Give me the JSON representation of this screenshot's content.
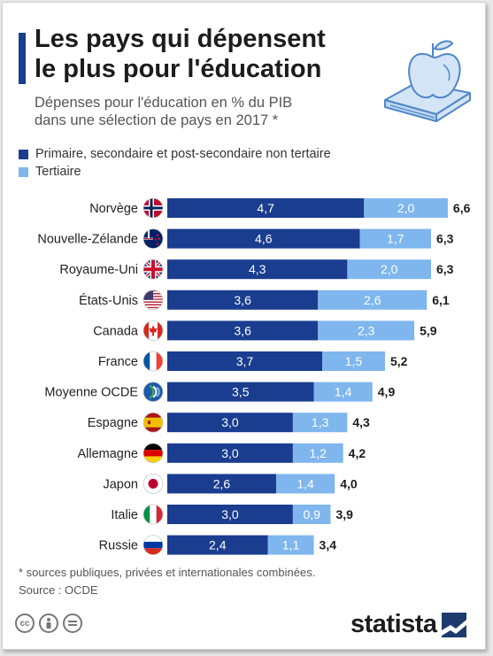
{
  "title_line1": "Les pays qui dépensent",
  "title_line2": "le plus pour l'éducation",
  "subtitle_line1": "Dépenses pour l'éducation en % du PIB",
  "subtitle_line2": "dans une sélection de pays en 2017 *",
  "legend": [
    {
      "label": "Primaire, secondaire et post-secondaire non tertaire",
      "color": "#1a3d8f"
    },
    {
      "label": "Tertiaire",
      "color": "#7fb6ee"
    }
  ],
  "footnote": "* sources publiques, privées et internationales combinées.",
  "source": "Source : OCDE",
  "brand": "statista",
  "icons": [
    "apple-on-book-icon",
    "creative-commons-icon",
    "attribution-icon",
    "no-derivatives-icon",
    "statista-logo-icon"
  ],
  "chart_data": {
    "type": "bar",
    "orientation": "horizontal",
    "stacked": true,
    "categories": [
      "Norvège",
      "Nouvelle-Zélande",
      "Royaume-Uni",
      "États-Unis",
      "Canada",
      "France",
      "Moyenne OCDE",
      "Espagne",
      "Allemagne",
      "Japon",
      "Italie",
      "Russie"
    ],
    "series": [
      {
        "name": "Primaire, secondaire et post-secondaire non tertaire",
        "color": "#1a3d8f",
        "values": [
          4.7,
          4.6,
          4.3,
          3.6,
          3.6,
          3.7,
          3.5,
          3.0,
          3.0,
          2.6,
          3.0,
          2.4
        ],
        "labels": [
          "4,7",
          "4,6",
          "4,3",
          "3,6",
          "3,6",
          "3,7",
          "3,5",
          "3,0",
          "3,0",
          "2,6",
          "3,0",
          "2,4"
        ]
      },
      {
        "name": "Tertiaire",
        "color": "#7fb6ee",
        "values": [
          2.0,
          1.7,
          2.0,
          2.6,
          2.3,
          1.5,
          1.4,
          1.3,
          1.2,
          1.4,
          0.9,
          1.1
        ],
        "labels": [
          "2,0",
          "1,7",
          "2,0",
          "2,6",
          "2,3",
          "1,5",
          "1,4",
          "1,3",
          "1,2",
          "1,4",
          "0,9",
          "1,1"
        ]
      }
    ],
    "totals": [
      6.6,
      6.3,
      6.3,
      6.1,
      5.9,
      5.2,
      4.9,
      4.3,
      4.2,
      4.0,
      3.9,
      3.4
    ],
    "total_labels": [
      "6,6",
      "6,3",
      "6,3",
      "6,1",
      "5,9",
      "5,2",
      "4,9",
      "4,3",
      "4,2",
      "4,0",
      "3,9",
      "3,4"
    ],
    "flags": [
      "flag-norway-icon",
      "flag-new-zealand-icon",
      "flag-uk-icon",
      "flag-usa-icon",
      "flag-canada-icon",
      "flag-france-icon",
      "flag-oecd-icon",
      "flag-spain-icon",
      "flag-germany-icon",
      "flag-japan-icon",
      "flag-italy-icon",
      "flag-russia-icon"
    ],
    "xlim": [
      0,
      6.6
    ],
    "grid": false,
    "legend_position": "top-left"
  }
}
